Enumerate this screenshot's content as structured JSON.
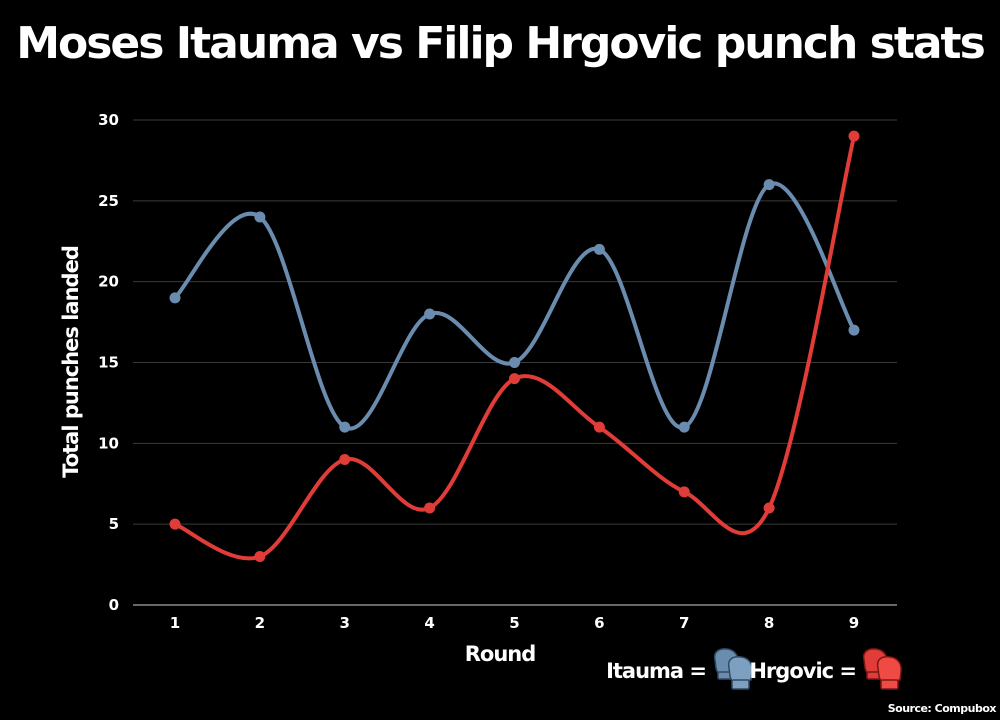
{
  "chart_data": {
    "type": "line",
    "title": "Moses Itauma vs Filip Hrgovic punch stats",
    "xlabel": "Round",
    "ylabel": "Total punches landed",
    "categories": [
      "1",
      "2",
      "3",
      "4",
      "5",
      "6",
      "7",
      "8",
      "9"
    ],
    "x": [
      1,
      2,
      3,
      4,
      5,
      6,
      7,
      8,
      9
    ],
    "ylim": [
      0,
      30
    ],
    "yticks": [
      0,
      5,
      10,
      15,
      20,
      25,
      30
    ],
    "grid": true,
    "smooth": true,
    "legend_position": "bottom-right",
    "series": [
      {
        "name": "Itauma",
        "legend_label": "Itauma =",
        "color": "#6a8caf",
        "icon": "boxing-glove-icon",
        "values": [
          19,
          24,
          11,
          18,
          15,
          22,
          11,
          26,
          17
        ]
      },
      {
        "name": "Hrgovic",
        "legend_label": "Hrgovic =",
        "color": "#e03c38",
        "icon": "boxing-glove-icon",
        "values": [
          5,
          3,
          9,
          6,
          14,
          11,
          7,
          6,
          29
        ]
      }
    ],
    "source": "Source: Compubox",
    "background": "#000000",
    "gridline_color": "#3a3a3a"
  }
}
